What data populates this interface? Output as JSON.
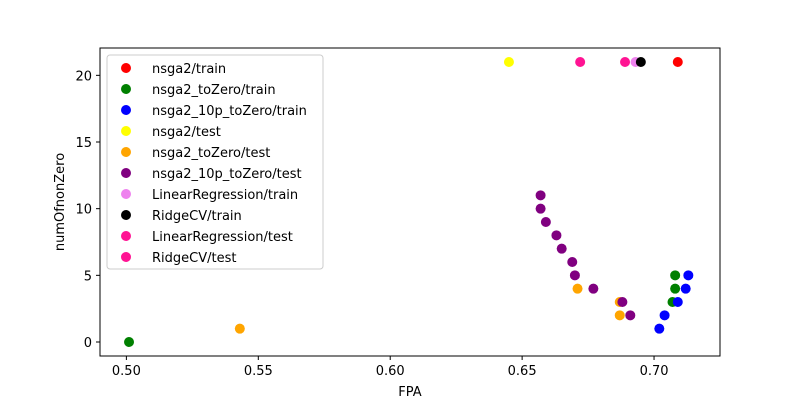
{
  "chart_data": {
    "type": "scatter",
    "title": "",
    "xlabel": "FPA",
    "ylabel": "numOfnonZero",
    "xlim": [
      0.49,
      0.725
    ],
    "ylim": [
      -1.05,
      22.05
    ],
    "xticks": [
      0.5,
      0.55,
      0.6,
      0.65,
      0.7
    ],
    "xtick_labels": [
      "0.50",
      "0.55",
      "0.60",
      "0.65",
      "0.70"
    ],
    "yticks": [
      0,
      5,
      10,
      15,
      20
    ],
    "ytick_labels": [
      "0",
      "5",
      "10",
      "15",
      "20"
    ],
    "grid": false,
    "legend_position": "upper-left",
    "series": [
      {
        "name": "nsga2/train",
        "color": "#ff0000",
        "points": [
          [
            0.709,
            21
          ]
        ]
      },
      {
        "name": "nsga2_toZero/train",
        "color": "#008000",
        "points": [
          [
            0.501,
            0
          ],
          [
            0.707,
            3
          ],
          [
            0.708,
            4
          ],
          [
            0.708,
            5
          ]
        ]
      },
      {
        "name": "nsga2_10p_toZero/train",
        "color": "#0000ff",
        "points": [
          [
            0.702,
            1
          ],
          [
            0.704,
            2
          ],
          [
            0.709,
            3
          ],
          [
            0.712,
            4
          ],
          [
            0.713,
            5
          ]
        ]
      },
      {
        "name": "nsga2/test",
        "color": "#ffff00",
        "points": [
          [
            0.645,
            21
          ]
        ]
      },
      {
        "name": "nsga2_toZero/test",
        "color": "#ffa500",
        "points": [
          [
            0.543,
            1
          ],
          [
            0.687,
            2
          ],
          [
            0.671,
            4
          ],
          [
            0.687,
            3
          ]
        ]
      },
      {
        "name": "nsga2_10p_toZero/test",
        "color": "#800080",
        "points": [
          [
            0.657,
            11
          ],
          [
            0.657,
            10
          ],
          [
            0.659,
            9
          ],
          [
            0.663,
            8
          ],
          [
            0.665,
            7
          ],
          [
            0.669,
            6
          ],
          [
            0.67,
            5
          ],
          [
            0.677,
            4
          ],
          [
            0.688,
            3
          ],
          [
            0.691,
            2
          ]
        ]
      },
      {
        "name": "LinearRegression/train",
        "color": "#ee82ee",
        "points": [
          [
            0.693,
            21
          ]
        ]
      },
      {
        "name": "RidgeCV/train",
        "color": "#000000",
        "points": [
          [
            0.695,
            21
          ]
        ]
      },
      {
        "name": "LinearRegression/test",
        "color": "#ff1493",
        "points": [
          [
            0.672,
            21
          ]
        ]
      },
      {
        "name": "RidgeCV/test",
        "color": "#ff1493",
        "points": [
          [
            0.689,
            21
          ]
        ]
      }
    ]
  }
}
